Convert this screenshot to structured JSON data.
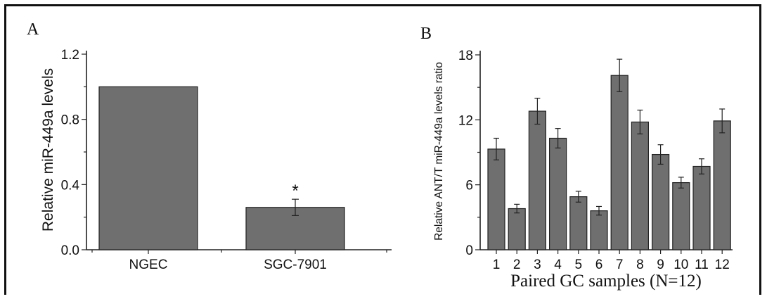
{
  "colors": {
    "bar": "#6f6f6f",
    "axis": "#222222"
  },
  "panels": {
    "a": {
      "label": "A"
    },
    "b": {
      "label": "B"
    }
  },
  "chart_data": [
    {
      "type": "bar",
      "panel": "A",
      "categories": [
        "NGEC",
        "SGC-7901"
      ],
      "values": [
        1.0,
        0.26
      ],
      "errors": [
        0.0,
        0.05
      ],
      "annotations": [
        "",
        "*"
      ],
      "ylabel": "Relative miR-449a levels",
      "xlabel": "",
      "ylim": [
        0,
        1.2
      ],
      "yticks": [
        "0.0",
        "0.4",
        "0.8",
        "1.2"
      ]
    },
    {
      "type": "bar",
      "panel": "B",
      "categories": [
        "1",
        "2",
        "3",
        "4",
        "5",
        "6",
        "7",
        "8",
        "9",
        "10",
        "11",
        "12"
      ],
      "values": [
        9.3,
        3.8,
        12.8,
        10.3,
        4.9,
        3.6,
        16.1,
        11.8,
        8.8,
        6.2,
        7.7,
        11.9
      ],
      "errors": [
        1.0,
        0.4,
        1.2,
        0.9,
        0.5,
        0.4,
        1.5,
        1.1,
        0.9,
        0.5,
        0.7,
        1.1
      ],
      "ylabel": "Relative ANT/T miR-449a levels ratio",
      "xlabel": "Paired GC samples (N=12)",
      "ylim": [
        0,
        18
      ],
      "yticks": [
        "0",
        "6",
        "12",
        "18"
      ]
    }
  ]
}
